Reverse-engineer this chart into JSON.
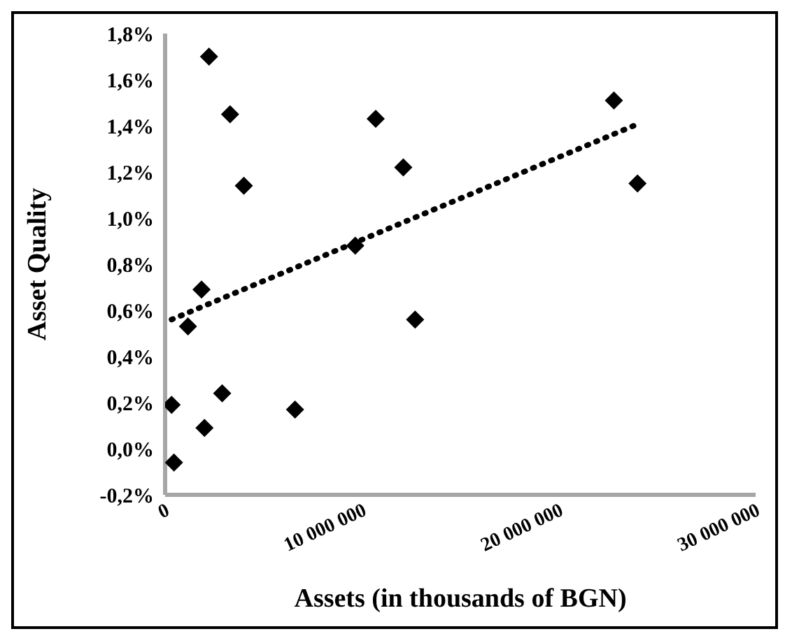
{
  "chart_data": {
    "type": "scatter",
    "xlabel": "Assets (in thousands of BGN)",
    "ylabel": "Asset Quality",
    "xlim": [
      0,
      30000000
    ],
    "xticks": [
      0,
      {
        "value": 10000000,
        "label": "10 000 000"
      },
      {
        "value": 20000000,
        "label": "20 000 000"
      },
      {
        "value": 30000000,
        "label": "30 000 000"
      }
    ],
    "ylim": [
      -0.2,
      1.8
    ],
    "yticks": [
      {
        "value": -0.2,
        "label": "-0,2%"
      },
      {
        "value": 0,
        "label": "0,0%"
      },
      {
        "value": 0.2,
        "label": "0,2%"
      },
      {
        "value": 0.4,
        "label": "0,4%"
      },
      {
        "value": 0.6,
        "label": "0,6%"
      },
      {
        "value": 0.8,
        "label": "0,8%"
      },
      {
        "value": 1.0,
        "label": "1,0%"
      },
      {
        "value": 1.2,
        "label": "1,2%"
      },
      {
        "value": 1.4,
        "label": "1,4%"
      },
      {
        "value": 1.6,
        "label": "1,6%"
      },
      {
        "value": 1.8,
        "label": "1,8%"
      }
    ],
    "grid": false,
    "legend": false,
    "series": [
      {
        "color": "#000000",
        "marker": "diamond",
        "x": [
          2230000,
          3300000,
          4000000,
          10700000,
          12100000,
          9660000,
          12700000,
          1850000,
          1160000,
          330000,
          2000000,
          2900000,
          6600000,
          450000,
          22800000,
          24000000
        ],
        "values": [
          1.7,
          1.45,
          1.14,
          1.43,
          1.22,
          0.88,
          0.56,
          0.69,
          0.53,
          0.19,
          0.09,
          0.24,
          0.17,
          -0.06,
          1.51,
          1.15
        ]
      },
      {
        "type": "line",
        "color": "#000000",
        "line_style": "dotted",
        "marker": "none",
        "x": [
          330000,
          23800000
        ],
        "values": [
          0.56,
          1.4
        ]
      }
    ]
  }
}
